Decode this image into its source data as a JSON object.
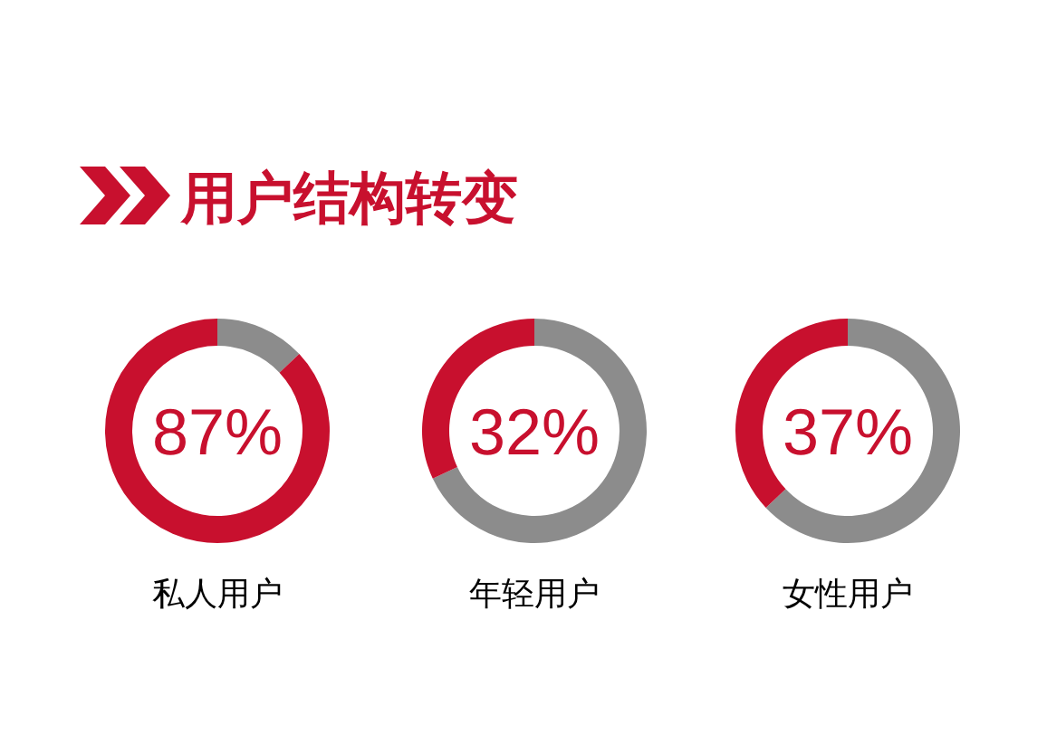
{
  "chart_data": [
    {
      "type": "other",
      "title": "用户结构转变"
    },
    {
      "type": "donut",
      "title": "私人用户",
      "categories": [
        null,
        null
      ],
      "values": [
        13,
        87
      ],
      "colors": [
        "#8c8c8c",
        "#c8102e"
      ],
      "annotations": [
        "87%"
      ]
    },
    {
      "type": "donut",
      "title": "年轻用户",
      "categories": [
        null,
        null
      ],
      "values": [
        68,
        32
      ],
      "colors": [
        "#8c8c8c",
        "#c8102e"
      ],
      "annotations": [
        "32%"
      ]
    },
    {
      "type": "donut",
      "title": "女性用户",
      "categories": [
        null,
        null
      ],
      "values": [
        63,
        37
      ],
      "colors": [
        "#8c8c8c",
        "#c8102e"
      ],
      "annotations": [
        "37%"
      ]
    }
  ]
}
